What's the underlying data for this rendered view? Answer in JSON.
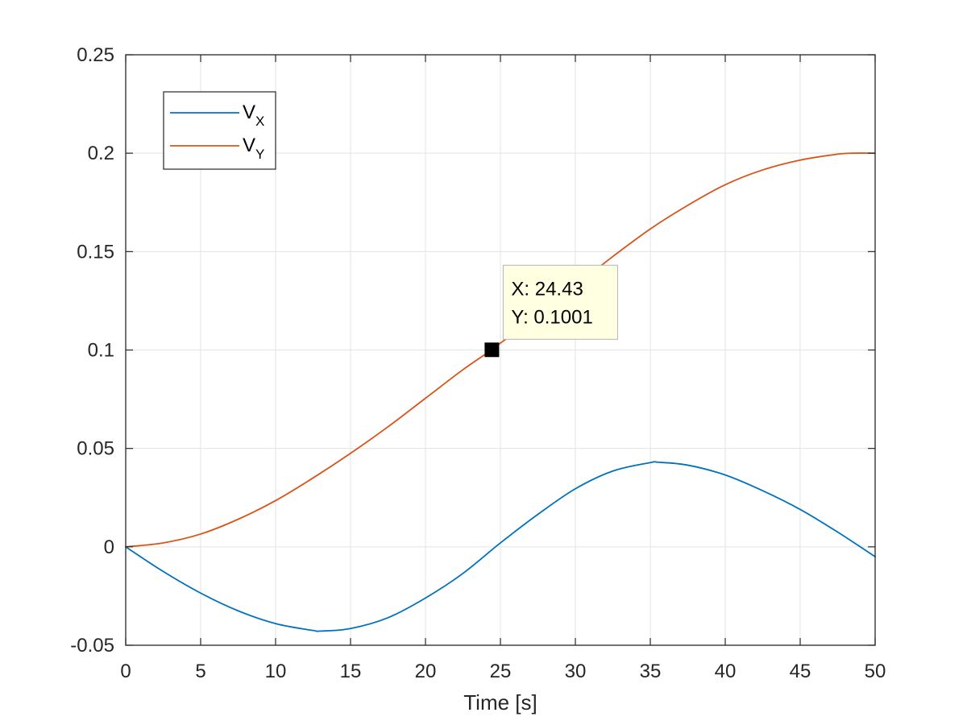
{
  "chart_data": {
    "type": "line",
    "xlabel": "Time [s]",
    "ylabel": "",
    "xlim": [
      0,
      50
    ],
    "ylim": [
      -0.05,
      0.25
    ],
    "xticks": [
      0,
      5,
      10,
      15,
      20,
      25,
      30,
      35,
      40,
      45,
      50
    ],
    "yticks": [
      -0.05,
      0,
      0.05,
      0.1,
      0.15,
      0.2,
      0.25
    ],
    "xtick_labels": [
      "0",
      "5",
      "10",
      "15",
      "20",
      "25",
      "30",
      "35",
      "40",
      "45",
      "50"
    ],
    "ytick_labels": [
      "-0.05",
      "0",
      "0.05",
      "0.1",
      "0.15",
      "0.2",
      "0.25"
    ],
    "grid": true,
    "legend_position": "top-left",
    "series": [
      {
        "name": "V",
        "subscript": "X",
        "color": "#0072BD",
        "x": [
          0,
          2.5,
          5,
          7.5,
          10,
          12.5,
          13,
          15,
          17.5,
          20,
          22.5,
          25,
          27.5,
          30,
          32.5,
          35,
          35.5,
          37.5,
          40,
          42.5,
          45,
          47.5,
          50
        ],
        "y": [
          0,
          -0.0125,
          -0.0235,
          -0.0325,
          -0.039,
          -0.0425,
          -0.0428,
          -0.0415,
          -0.036,
          -0.026,
          -0.0135,
          0.002,
          0.0165,
          0.0295,
          0.0385,
          0.0428,
          0.043,
          0.0415,
          0.0365,
          0.0285,
          0.019,
          0.0075,
          -0.005
        ]
      },
      {
        "name": "V",
        "subscript": "Y",
        "color": "#D95319",
        "x": [
          0,
          2.5,
          5,
          7.5,
          10,
          12.5,
          15,
          17.5,
          20,
          22.5,
          24.43,
          25,
          27.5,
          30,
          32.5,
          35,
          37.5,
          40,
          42.5,
          45,
          47.5,
          48.5,
          50
        ],
        "y": [
          0,
          0.002,
          0.0065,
          0.014,
          0.0235,
          0.035,
          0.0475,
          0.061,
          0.0755,
          0.09,
          0.1001,
          0.1035,
          0.1175,
          0.1325,
          0.1475,
          0.1615,
          0.1735,
          0.184,
          0.1915,
          0.1965,
          0.1995,
          0.2,
          0.2
        ]
      }
    ],
    "datatip": {
      "x_text": "X: 24.43",
      "y_text": "Y: 0.1001",
      "x": 24.43,
      "y": 0.1001
    }
  }
}
